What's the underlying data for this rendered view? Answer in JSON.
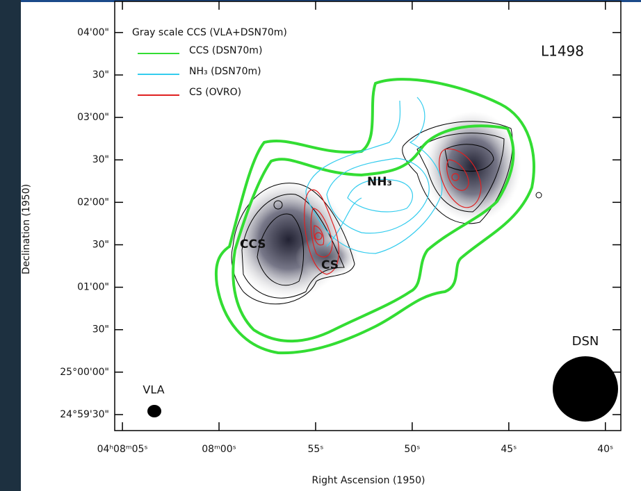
{
  "chart_data": {
    "type": "contour",
    "label": "L1498",
    "xlabel": "Right Ascension (1950)",
    "ylabel": "Declination (1950)",
    "gray_scale_label": "Gray scale  CCS (VLA+DSN70m)",
    "legend": [
      {
        "label": "CCS  (DSN70m)",
        "color": "#33dd33"
      },
      {
        "label": "NH₃ (DSN70m)",
        "color": "#33ccee"
      },
      {
        "label": "CS  (OVRO)",
        "color": "#e02020"
      }
    ],
    "annotations": [
      "NH₃",
      "CCS",
      "CS",
      "DSN",
      "VLA"
    ],
    "xlim": [
      485.4,
      459.2
    ],
    "ylim": [
      89958.7,
      90262
    ],
    "xticks": [
      {
        "value": 485,
        "label": "04ʰ08ᵐ05ˢ"
      },
      {
        "value": 480,
        "label": "08ᵐ00ˢ"
      },
      {
        "value": 475,
        "label": "55ˢ"
      },
      {
        "value": 470,
        "label": "50ˢ"
      },
      {
        "value": 465,
        "label": "45ˢ"
      },
      {
        "value": 460,
        "label": "40ˢ"
      }
    ],
    "yticks": [
      {
        "value": 89970,
        "label": "24°59'30\""
      },
      {
        "value": 90000,
        "label": "25°00'00\""
      },
      {
        "value": 90030,
        "label": "30\""
      },
      {
        "value": 90060,
        "label": "01'00\""
      },
      {
        "value": 90090,
        "label": "30\""
      },
      {
        "value": 90120,
        "label": "02'00\""
      },
      {
        "value": 90150,
        "label": "30\""
      },
      {
        "value": 90180,
        "label": "03'00\""
      },
      {
        "value": 90210,
        "label": "30\""
      },
      {
        "value": 90240,
        "label": "04'00\""
      }
    ]
  }
}
